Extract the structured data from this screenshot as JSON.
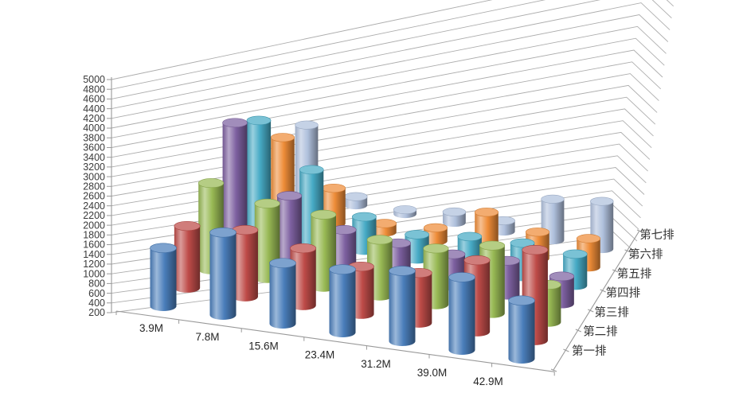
{
  "window": {
    "background": "#FFFFFF"
  },
  "chart_data": {
    "type": "bar",
    "subtype": "3d-cylinder",
    "title": "",
    "grid": true,
    "legend_position": "none (series named on depth axis)",
    "categories": [
      "3.9M",
      "7.8M",
      "15.6M",
      "23.4M",
      "31.2M",
      "39.0M",
      "42.9M"
    ],
    "series": [
      {
        "name": "第一排",
        "color": "#4A7EBB",
        "values": [
          1400,
          1900,
          1450,
          1500,
          1650,
          1700,
          1400
        ]
      },
      {
        "name": "第二排",
        "color": "#BE4B48",
        "values": [
          1500,
          1600,
          1400,
          1200,
          1250,
          1700,
          2100
        ]
      },
      {
        "name": "第三排",
        "color": "#98B954",
        "values": [
          2050,
          1800,
          1750,
          1400,
          1400,
          1650,
          1000
        ]
      },
      {
        "name": "第四排",
        "color": "#7D60A0",
        "values": [
          3000,
          1600,
          1050,
          950,
          900,
          950,
          800
        ]
      },
      {
        "name": "第五排",
        "color": "#46AAC5",
        "values": [
          2700,
          1800,
          950,
          750,
          900,
          950,
          900
        ]
      },
      {
        "name": "第六排",
        "color": "#EE8C38",
        "values": [
          1950,
          1000,
          400,
          500,
          1050,
          800,
          850
        ]
      },
      {
        "name": "第七排",
        "color": "#AFC0DC",
        "values": [
          1850,
          400,
          300,
          450,
          450,
          1150,
          1300
        ]
      }
    ],
    "value_axis": {
      "min": 200,
      "max": 5000,
      "step": 200,
      "labels": [
        "200",
        "400",
        "600",
        "800",
        "1000",
        "1200",
        "1400",
        "1600",
        "1800",
        "2000",
        "2200",
        "2400",
        "2600",
        "2800",
        "3000",
        "3200",
        "3400",
        "3600",
        "3800",
        "4000",
        "4200",
        "4400",
        "4600",
        "4800",
        "5000"
      ]
    },
    "depth_axis_labels": [
      "第一排",
      "第二排",
      "第三排",
      "第四排",
      "第五排",
      "第六排",
      "第七排"
    ]
  },
  "colors": {
    "gridline": "#ADADAD",
    "axis_line": "#999999",
    "value_label": "#3A3A3A",
    "category_label": "#262626",
    "depth_label": "#333333"
  }
}
